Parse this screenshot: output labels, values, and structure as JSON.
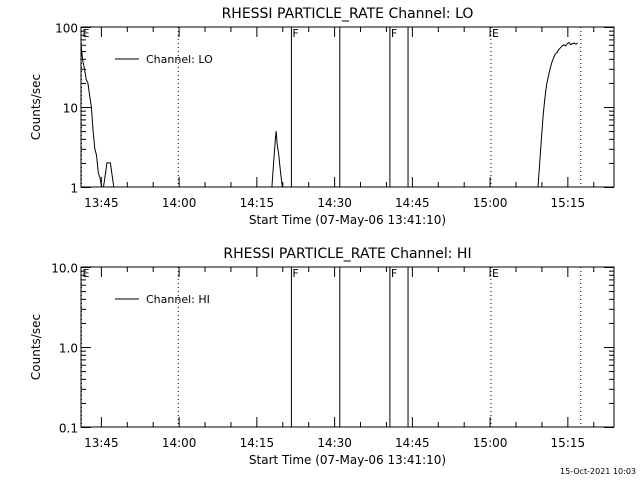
{
  "timestamp": "15-Oct-2021 10:03",
  "chart_data": [
    {
      "type": "line",
      "title": "RHESSI PARTICLE_RATE Channel: LO",
      "xlabel": "Start Time (07-May-06 13:41:10)",
      "ylabel": "Counts/sec",
      "y_scale": "log",
      "ylim": [
        1,
        100
      ],
      "xlim": [
        "13:41:10",
        "15:24:00"
      ],
      "yticks": [
        {
          "value": 1,
          "label": "1"
        },
        {
          "value": 10,
          "label": "10"
        },
        {
          "value": 100,
          "label": "100"
        }
      ],
      "xticks": [
        {
          "time": "13:45",
          "label": "13:45"
        },
        {
          "time": "14:00",
          "label": "14:00"
        },
        {
          "time": "14:15",
          "label": "14:15"
        },
        {
          "time": "14:30",
          "label": "14:30"
        },
        {
          "time": "14:45",
          "label": "14:45"
        },
        {
          "time": "15:00",
          "label": "15:00"
        },
        {
          "time": "15:15",
          "label": "15:15"
        }
      ],
      "legend": {
        "label": "Channel: LO",
        "position": "top-left"
      },
      "markers": [
        {
          "time": "13:41:10",
          "style": "dotted",
          "label": "E"
        },
        {
          "time": "13:59:50",
          "style": "dotted",
          "label": ""
        },
        {
          "time": "14:21:40",
          "style": "solid",
          "label": "F"
        },
        {
          "time": "14:31:00",
          "style": "solid",
          "label": ""
        },
        {
          "time": "14:40:40",
          "style": "solid",
          "label": "F"
        },
        {
          "time": "14:44:10",
          "style": "solid",
          "label": ""
        },
        {
          "time": "15:00:10",
          "style": "dotted",
          "label": "E"
        },
        {
          "time": "15:17:30",
          "style": "dotted",
          "label": ""
        }
      ],
      "series": [
        {
          "segments": [
            [
              {
                "x": "13:41:10",
                "y": 60
              },
              {
                "x": "13:41:30",
                "y": 38
              },
              {
                "x": "13:41:50",
                "y": 30
              },
              {
                "x": "13:42:10",
                "y": 22
              },
              {
                "x": "13:42:30",
                "y": 20
              },
              {
                "x": "13:42:50",
                "y": 14
              },
              {
                "x": "13:43:10",
                "y": 10
              },
              {
                "x": "13:43:30",
                "y": 5
              },
              {
                "x": "13:43:50",
                "y": 3
              },
              {
                "x": "13:44:10",
                "y": 2.5
              },
              {
                "x": "13:44:30",
                "y": 1.5
              },
              {
                "x": "13:44:50",
                "y": 1.3
              },
              {
                "x": "13:45:10",
                "y": 1
              }
            ],
            [
              {
                "x": "13:45:30",
                "y": 1
              },
              {
                "x": "13:45:50",
                "y": 1.4
              },
              {
                "x": "13:46:10",
                "y": 2
              },
              {
                "x": "13:46:50",
                "y": 2
              },
              {
                "x": "13:47:10",
                "y": 1.4
              },
              {
                "x": "13:47:30",
                "y": 1
              }
            ],
            [
              {
                "x": "14:18:00",
                "y": 1
              },
              {
                "x": "14:18:20",
                "y": 2
              },
              {
                "x": "14:18:40",
                "y": 4
              },
              {
                "x": "14:18:50",
                "y": 5
              },
              {
                "x": "14:19:00",
                "y": 3.5
              },
              {
                "x": "14:19:20",
                "y": 2.5
              },
              {
                "x": "14:19:40",
                "y": 1.5
              },
              {
                "x": "14:20:00",
                "y": 1
              }
            ],
            [
              {
                "x": "15:09:20",
                "y": 1
              },
              {
                "x": "15:09:40",
                "y": 2
              },
              {
                "x": "15:10:00",
                "y": 4
              },
              {
                "x": "15:10:20",
                "y": 8
              },
              {
                "x": "15:10:40",
                "y": 13
              },
              {
                "x": "15:11:00",
                "y": 19
              },
              {
                "x": "15:11:20",
                "y": 24
              },
              {
                "x": "15:11:40",
                "y": 30
              },
              {
                "x": "15:12:00",
                "y": 36
              },
              {
                "x": "15:12:20",
                "y": 41
              },
              {
                "x": "15:12:40",
                "y": 46
              },
              {
                "x": "15:13:00",
                "y": 48
              },
              {
                "x": "15:13:20",
                "y": 52
              },
              {
                "x": "15:13:40",
                "y": 55
              },
              {
                "x": "15:14:00",
                "y": 58
              },
              {
                "x": "15:14:20",
                "y": 60
              },
              {
                "x": "15:14:40",
                "y": 58
              },
              {
                "x": "15:15:00",
                "y": 62
              },
              {
                "x": "15:15:20",
                "y": 64
              },
              {
                "x": "15:15:40",
                "y": 60
              },
              {
                "x": "15:16:00",
                "y": 62
              },
              {
                "x": "15:16:20",
                "y": 63
              },
              {
                "x": "15:16:40",
                "y": 61
              },
              {
                "x": "15:17:00",
                "y": 63
              }
            ]
          ]
        }
      ]
    },
    {
      "type": "line",
      "title": "RHESSI PARTICLE_RATE Channel: HI",
      "xlabel": "Start Time (07-May-06 13:41:10)",
      "ylabel": "Counts/sec",
      "y_scale": "log",
      "ylim": [
        0.1,
        10
      ],
      "xlim": [
        "13:41:10",
        "15:24:00"
      ],
      "yticks": [
        {
          "value": 0.1,
          "label": "0.1"
        },
        {
          "value": 1,
          "label": "1.0"
        },
        {
          "value": 10,
          "label": "10.0"
        }
      ],
      "xticks": [
        {
          "time": "13:45",
          "label": "13:45"
        },
        {
          "time": "14:00",
          "label": "14:00"
        },
        {
          "time": "14:15",
          "label": "14:15"
        },
        {
          "time": "14:30",
          "label": "14:30"
        },
        {
          "time": "14:45",
          "label": "14:45"
        },
        {
          "time": "15:00",
          "label": "15:00"
        },
        {
          "time": "15:15",
          "label": "15:15"
        }
      ],
      "legend": {
        "label": "Channel: HI",
        "position": "top-left"
      },
      "markers": [
        {
          "time": "13:41:10",
          "style": "dotted",
          "label": "E"
        },
        {
          "time": "13:59:50",
          "style": "dotted",
          "label": ""
        },
        {
          "time": "14:21:40",
          "style": "solid",
          "label": "F"
        },
        {
          "time": "14:31:00",
          "style": "solid",
          "label": ""
        },
        {
          "time": "14:40:40",
          "style": "solid",
          "label": "F"
        },
        {
          "time": "14:44:10",
          "style": "solid",
          "label": ""
        },
        {
          "time": "15:00:10",
          "style": "dotted",
          "label": "E"
        },
        {
          "time": "15:17:30",
          "style": "dotted",
          "label": ""
        }
      ],
      "series": [
        {
          "segments": []
        }
      ]
    }
  ]
}
